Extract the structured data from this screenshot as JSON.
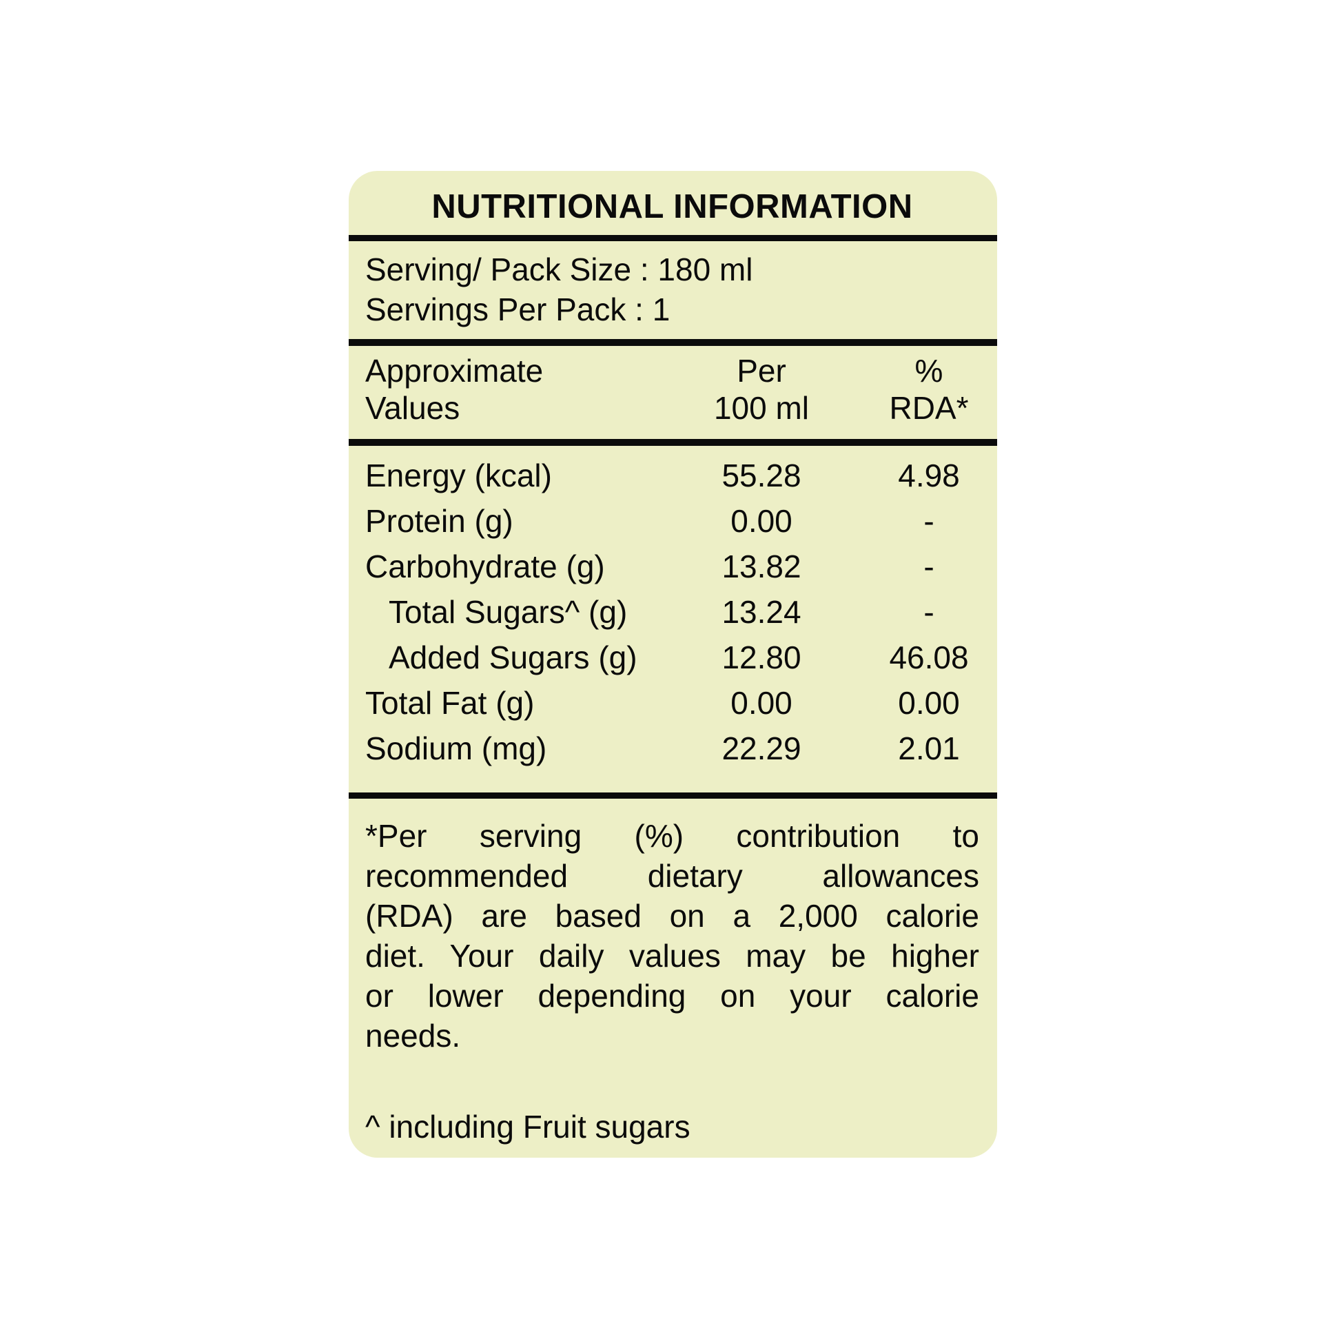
{
  "label": {
    "title": "NUTRITIONAL INFORMATION",
    "serving": {
      "pack_size": "Serving/ Pack Size : 180 ml",
      "servings_per_pack": "Servings Per Pack : 1"
    },
    "table": {
      "header": {
        "col1_line1": "Approximate",
        "col1_line2": "Values",
        "col2_line1": "Per",
        "col2_line2": "100 ml",
        "col3_line1": "%",
        "col3_line2": "RDA*"
      },
      "rows": [
        {
          "name": "Energy (kcal)",
          "per_100ml": "55.28",
          "rda": "4.98"
        },
        {
          "name": "Protein (g)",
          "per_100ml": "0.00",
          "rda": "-"
        },
        {
          "name": "Carbohydrate (g)",
          "per_100ml": "13.82",
          "rda": "-"
        },
        {
          "name": "Total Sugars^ (g)",
          "per_100ml": "13.24",
          "rda": "-"
        },
        {
          "name": "Added Sugars (g)",
          "per_100ml": "12.80",
          "rda": "46.08"
        },
        {
          "name": "Total Fat (g)",
          "per_100ml": "0.00",
          "rda": "0.00"
        },
        {
          "name": "Sodium (mg)",
          "per_100ml": "22.29",
          "rda": "2.01"
        }
      ]
    },
    "footnote_lines": [
      "*Per serving (%) contribution to",
      "recommended dietary allowances",
      "(RDA) are based on a 2,000 calorie",
      "diet. Your daily values may be higher",
      "or lower depending on your calorie",
      "needs."
    ],
    "fruit_note": "^ including Fruit sugars",
    "colors": {
      "background": "#EDEFC6",
      "text": "#0B0B0B"
    }
  }
}
